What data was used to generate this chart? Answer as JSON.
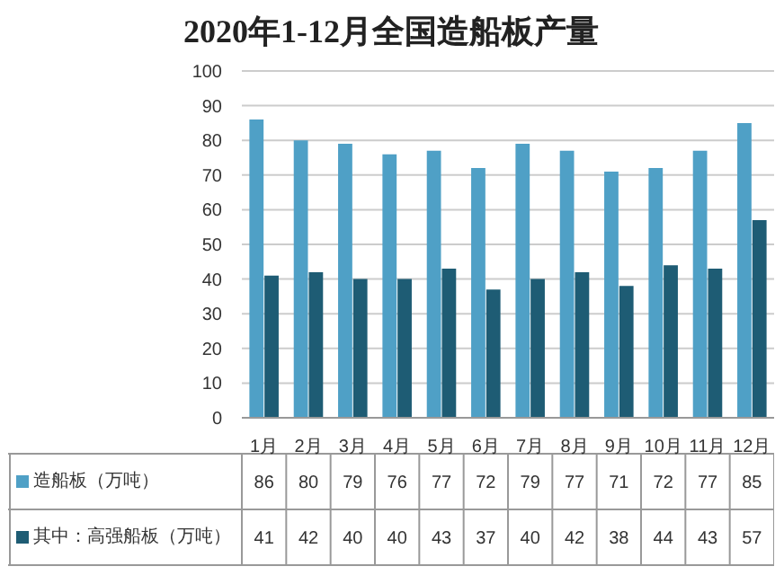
{
  "chart_data": {
    "type": "bar",
    "title": "2020年1-12月全国造船板产量",
    "categories": [
      "1月",
      "2月",
      "3月",
      "4月",
      "5月",
      "6月",
      "7月",
      "8月",
      "9月",
      "10月",
      "11月",
      "12月"
    ],
    "series": [
      {
        "name": "造船板（万吨）",
        "color": "#4fa0c6",
        "values": [
          86,
          80,
          79,
          76,
          77,
          72,
          79,
          77,
          71,
          72,
          77,
          85
        ]
      },
      {
        "name": "其中：高强船板（万吨）",
        "color": "#1e5c74",
        "values": [
          41,
          42,
          40,
          40,
          43,
          37,
          40,
          42,
          38,
          44,
          43,
          57
        ]
      }
    ],
    "ylim": [
      0,
      100
    ],
    "yticks": [
      0,
      10,
      20,
      30,
      40,
      50,
      60,
      70,
      80,
      90,
      100
    ],
    "grid": "y",
    "legend": "bottom",
    "data_labels": true
  }
}
